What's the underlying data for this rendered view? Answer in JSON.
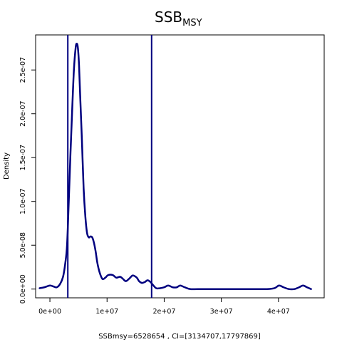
{
  "chart_data": {
    "type": "line",
    "title": {
      "main": "SSB",
      "subscript": "MSY"
    },
    "xlabel": "SSBmsy=6528654 , CI=[3134707,17797869]",
    "ylabel": "Density",
    "xlim": [
      -2500000,
      48000000
    ],
    "ylim": [
      -1e-08,
      2.9e-07
    ],
    "x_ticks": [
      {
        "value": 0,
        "label": "0e+00"
      },
      {
        "value": 10000000,
        "label": "1e+07"
      },
      {
        "value": 20000000,
        "label": "2e+07"
      },
      {
        "value": 30000000,
        "label": "3e+07"
      },
      {
        "value": 40000000,
        "label": "4e+07"
      }
    ],
    "y_ticks": [
      {
        "value": 0,
        "label": "0.0e+00"
      },
      {
        "value": 5e-08,
        "label": "5.0e-08"
      },
      {
        "value": 1e-07,
        "label": "1.0e-07"
      },
      {
        "value": 1.5e-07,
        "label": "1.5e-07"
      },
      {
        "value": 2e-07,
        "label": "2.0e-07"
      },
      {
        "value": 2.5e-07,
        "label": "2.5e-07"
      }
    ],
    "vertical_lines": [
      3134707,
      17797869
    ],
    "line_color": "#00007f",
    "series": [
      {
        "x": [
          -1800000,
          -1000000,
          0,
          600000,
          1200000,
          1800000,
          2300000,
          2700000,
          3000000,
          3300000,
          3600000,
          3900000,
          4200000,
          4500000,
          4700000,
          4900000,
          5100000,
          5300000,
          5600000,
          5900000,
          6200000,
          6500000,
          6800000,
          7100000,
          7400000,
          7700000,
          8000000,
          8300000,
          8700000,
          9200000,
          9700000,
          10200000,
          11000000,
          11600000,
          12300000,
          12800000,
          13300000,
          13900000,
          14500000,
          15200000,
          15600000,
          16100000,
          16600000,
          17100000,
          17600000,
          18000000,
          18600000,
          19300000,
          20000000,
          20700000,
          21500000,
          22200000,
          22800000,
          23600000,
          24600000,
          27000000,
          31000000,
          35000000,
          38000000,
          39300000,
          40100000,
          40900000,
          41800000,
          42800000,
          43600000,
          44300000,
          45000000,
          45700000
        ],
        "y": [
          1e-09,
          2e-09,
          4e-09,
          3e-09,
          2e-09,
          6e-09,
          1.4e-08,
          3e-08,
          5e-08,
          1e-07,
          1.55e-07,
          2.05e-07,
          2.5e-07,
          2.75e-07,
          2.8e-07,
          2.75e-07,
          2.55e-07,
          2.2e-07,
          1.7e-07,
          1.15e-07,
          8.3e-08,
          6.4e-08,
          5.9e-08,
          6e-08,
          5.9e-08,
          5.3e-08,
          4.3e-08,
          3e-08,
          1.9e-08,
          1.15e-08,
          1.3e-08,
          1.6e-08,
          1.6e-08,
          1.3e-08,
          1.4e-08,
          1.15e-08,
          9e-09,
          1.2e-08,
          1.55e-08,
          1.3e-08,
          9e-09,
          7e-09,
          8e-09,
          1e-08,
          8e-09,
          5e-09,
          1e-09,
          1e-09,
          2e-09,
          4e-09,
          2e-09,
          2e-09,
          4e-09,
          2e-09,
          0,
          0,
          0,
          0,
          0,
          1e-09,
          4e-09,
          2e-09,
          0,
          0,
          2e-09,
          4e-09,
          2e-09,
          0
        ]
      }
    ]
  }
}
